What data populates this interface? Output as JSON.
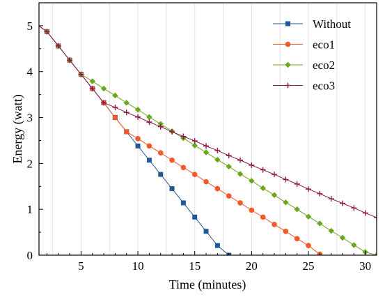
{
  "chart_data": {
    "type": "line",
    "xlabel": "Time (minutes)",
    "ylabel": "Energy (watt)",
    "xlim": [
      1.3,
      31
    ],
    "ylim": [
      0,
      5.5
    ],
    "xticks": [
      5,
      10,
      15,
      20,
      25,
      30
    ],
    "yticks": [
      0,
      1,
      2,
      3,
      4,
      5
    ],
    "grid": "vertical",
    "legend_position": "top-right",
    "series": [
      {
        "name": "Without",
        "color": "#1f5a96",
        "marker": "square",
        "points": [
          [
            1,
            5.05
          ],
          [
            2,
            4.87
          ],
          [
            3,
            4.56
          ],
          [
            4,
            4.25
          ],
          [
            5,
            3.94
          ],
          [
            6,
            3.63
          ],
          [
            7,
            3.32
          ],
          [
            8,
            3.0
          ],
          [
            9,
            2.69
          ],
          [
            10,
            2.38
          ],
          [
            11,
            2.07
          ],
          [
            12,
            1.76
          ],
          [
            13,
            1.45
          ],
          [
            14,
            1.14
          ],
          [
            15,
            0.83
          ],
          [
            16,
            0.52
          ],
          [
            17,
            0.21
          ],
          [
            18,
            0.0
          ]
        ]
      },
      {
        "name": "eco1",
        "color": "#f05a28",
        "marker": "circle",
        "points": [
          [
            1,
            5.05
          ],
          [
            2,
            4.87
          ],
          [
            3,
            4.56
          ],
          [
            4,
            4.25
          ],
          [
            5,
            3.94
          ],
          [
            6,
            3.63
          ],
          [
            7,
            3.32
          ],
          [
            8,
            3.0
          ],
          [
            9,
            2.69
          ],
          [
            10,
            2.54
          ],
          [
            11,
            2.38
          ],
          [
            12,
            2.23
          ],
          [
            13,
            2.07
          ],
          [
            14,
            1.91
          ],
          [
            15,
            1.76
          ],
          [
            16,
            1.6
          ],
          [
            17,
            1.45
          ],
          [
            18,
            1.29
          ],
          [
            19,
            1.14
          ],
          [
            20,
            0.98
          ],
          [
            21,
            0.83
          ],
          [
            22,
            0.67
          ],
          [
            23,
            0.52
          ],
          [
            24,
            0.36
          ],
          [
            25,
            0.21
          ],
          [
            26,
            0.02
          ]
        ]
      },
      {
        "name": "eco2",
        "color": "#6aa61e",
        "marker": "diamond",
        "points": [
          [
            1,
            5.05
          ],
          [
            2,
            4.87
          ],
          [
            3,
            4.56
          ],
          [
            4,
            4.25
          ],
          [
            5,
            3.94
          ],
          [
            6,
            3.79
          ],
          [
            7,
            3.63
          ],
          [
            8,
            3.48
          ],
          [
            9,
            3.32
          ],
          [
            10,
            3.17
          ],
          [
            11,
            3.01
          ],
          [
            12,
            2.86
          ],
          [
            13,
            2.7
          ],
          [
            14,
            2.55
          ],
          [
            15,
            2.39
          ],
          [
            16,
            2.24
          ],
          [
            17,
            2.08
          ],
          [
            18,
            1.93
          ],
          [
            19,
            1.77
          ],
          [
            20,
            1.62
          ],
          [
            21,
            1.46
          ],
          [
            22,
            1.31
          ],
          [
            23,
            1.15
          ],
          [
            24,
            1.0
          ],
          [
            25,
            0.84
          ],
          [
            26,
            0.69
          ],
          [
            27,
            0.53
          ],
          [
            28,
            0.38
          ],
          [
            29,
            0.22
          ],
          [
            30,
            0.07
          ],
          [
            31,
            0.0
          ]
        ]
      },
      {
        "name": "eco3",
        "color": "#8b1a4a",
        "marker": "plus",
        "points": [
          [
            1,
            5.05
          ],
          [
            2,
            4.87
          ],
          [
            3,
            4.56
          ],
          [
            4,
            4.25
          ],
          [
            5,
            3.94
          ],
          [
            6,
            3.63
          ],
          [
            7,
            3.32
          ],
          [
            8,
            3.22
          ],
          [
            9,
            3.11
          ],
          [
            10,
            3.01
          ],
          [
            11,
            2.9
          ],
          [
            12,
            2.8
          ],
          [
            13,
            2.69
          ],
          [
            14,
            2.59
          ],
          [
            15,
            2.49
          ],
          [
            16,
            2.38
          ],
          [
            17,
            2.28
          ],
          [
            18,
            2.17
          ],
          [
            19,
            2.07
          ],
          [
            20,
            1.96
          ],
          [
            21,
            1.86
          ],
          [
            22,
            1.76
          ],
          [
            23,
            1.65
          ],
          [
            24,
            1.55
          ],
          [
            25,
            1.44
          ],
          [
            26,
            1.34
          ],
          [
            27,
            1.23
          ],
          [
            28,
            1.13
          ],
          [
            29,
            1.03
          ],
          [
            30,
            0.92
          ],
          [
            31,
            0.82
          ]
        ]
      }
    ]
  }
}
